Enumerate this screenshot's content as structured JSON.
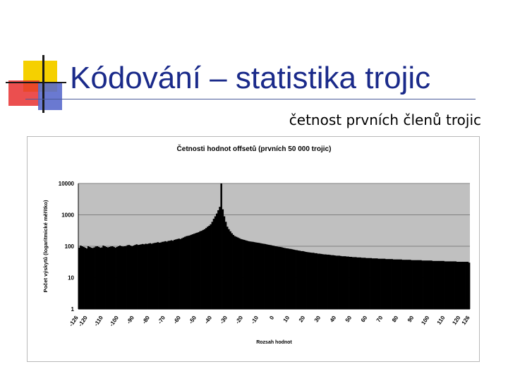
{
  "slide": {
    "title": "Kódování – statistika trojic",
    "subtitle": "četnost prvních členů trojic"
  },
  "colors": {
    "title_text": "#1a2a8a",
    "deco_yellow": "#f5d000",
    "deco_red": "#e83030",
    "deco_blue": "#5a6acc",
    "plot_background": "#c0c0c0",
    "bars": "#000000"
  },
  "chart_data": {
    "type": "bar",
    "title": "Četnosti hodnot offsetů (prvních 50 000 trojic)",
    "xlabel": "Rozsah hodnot",
    "ylabel": "Počet výskytů (logaritmické měřítko)",
    "y_scale": "log",
    "ylim": [
      1,
      10000
    ],
    "y_ticks": [
      "10000",
      "1000",
      "100",
      "10",
      "1"
    ],
    "x_ticks": [
      "-126",
      "-120",
      "-110",
      "-100",
      "-90",
      "-80",
      "-70",
      "-60",
      "-50",
      "-40",
      "-30",
      "-20",
      "-10",
      "0",
      "10",
      "20",
      "30",
      "40",
      "50",
      "60",
      "70",
      "80",
      "90",
      "100",
      "110",
      "120",
      "126"
    ],
    "grid": "horizontal",
    "legend": "none",
    "x_range": [
      -126,
      126
    ],
    "values": [
      90,
      105,
      100,
      95,
      90,
      85,
      100,
      95,
      90,
      88,
      92,
      98,
      100,
      95,
      90,
      92,
      105,
      100,
      95,
      92,
      95,
      98,
      100,
      95,
      90,
      95,
      100,
      105,
      100,
      98,
      100,
      102,
      108,
      110,
      105,
      100,
      105,
      110,
      115,
      110,
      112,
      115,
      118,
      115,
      120,
      118,
      122,
      125,
      120,
      125,
      128,
      130,
      135,
      130,
      132,
      138,
      140,
      145,
      140,
      148,
      150,
      155,
      150,
      160,
      165,
      170,
      175,
      170,
      180,
      190,
      200,
      210,
      215,
      220,
      230,
      240,
      250,
      260,
      270,
      280,
      300,
      310,
      330,
      350,
      380,
      420,
      450,
      500,
      600,
      750,
      900,
      1100,
      1400,
      1800,
      10000,
      1500,
      900,
      600,
      420,
      350,
      300,
      260,
      230,
      210,
      200,
      190,
      180,
      170,
      165,
      160,
      155,
      150,
      145,
      142,
      140,
      138,
      135,
      132,
      130,
      128,
      125,
      122,
      120,
      118,
      115,
      112,
      110,
      108,
      105,
      103,
      100,
      98,
      96,
      95,
      93,
      90,
      88,
      86,
      85,
      83,
      82,
      80,
      78,
      76,
      75,
      73,
      72,
      70,
      70,
      68,
      66,
      65,
      64,
      63,
      62,
      62,
      60,
      60,
      58,
      58,
      57,
      56,
      55,
      55,
      54,
      54,
      53,
      52,
      52,
      51,
      50,
      50,
      50,
      49,
      48,
      48,
      48,
      47,
      47,
      46,
      46,
      45,
      45,
      45,
      44,
      44,
      44,
      43,
      43,
      43,
      42,
      42,
      42,
      42,
      41,
      41,
      41,
      41,
      40,
      40,
      40,
      40,
      40,
      39,
      39,
      39,
      39,
      39,
      38,
      38,
      38,
      38,
      38,
      38,
      37,
      37,
      37,
      37,
      37,
      37,
      36,
      36,
      36,
      36,
      36,
      36,
      36,
      35,
      35,
      35,
      35,
      35,
      35,
      35,
      34,
      34,
      34,
      34,
      34,
      34,
      34,
      34,
      33,
      33,
      33,
      33,
      33,
      33,
      33,
      33,
      32,
      32,
      32,
      32,
      32,
      32,
      32,
      32,
      30
    ]
  }
}
